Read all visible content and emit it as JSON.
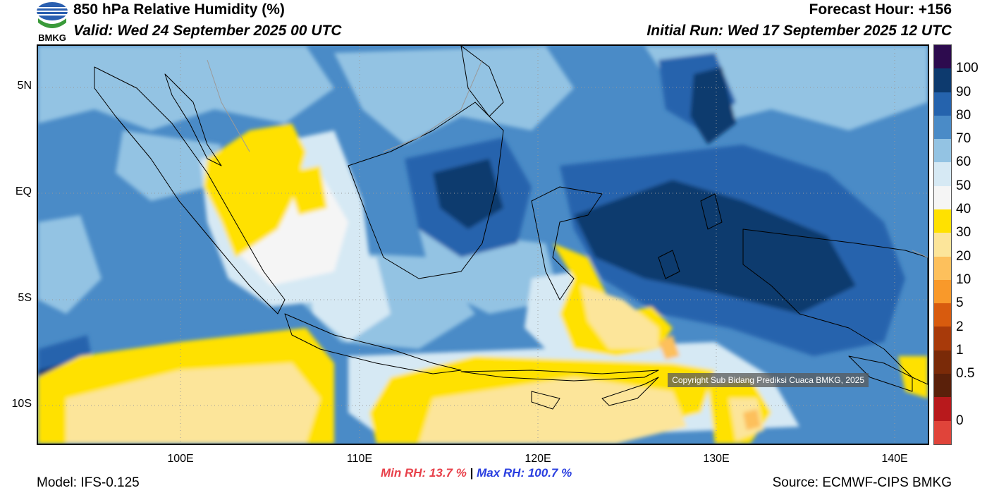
{
  "header": {
    "title": "850 hPa Relative Humidity (%)",
    "valid": "Valid: Wed 24 September 2025 00 UTC",
    "forecast_hour": "Forecast Hour: +156",
    "initial_run": "Initial Run: Wed 17 September 2025 12 UTC"
  },
  "logo": {
    "text": "BMKG",
    "icon": "bmkg-logo-icon"
  },
  "axes": {
    "lat_labels": [
      "5N",
      "EQ",
      "5S",
      "10S"
    ],
    "lon_labels": [
      "100E",
      "110E",
      "120E",
      "130E",
      "140E"
    ]
  },
  "colorbar": {
    "labels": [
      "100",
      "90",
      "80",
      "70",
      "60",
      "50",
      "40",
      "30",
      "20",
      "10",
      "5",
      "2",
      "1",
      "0.5",
      "0"
    ],
    "colors": [
      "#2d0b4e",
      "#0d3a6e",
      "#2563ad",
      "#4a8bc7",
      "#93c3e3",
      "#d6e9f4",
      "#f5f5f5",
      "#ffe100",
      "#fce59a",
      "#fdc05c",
      "#f9992a",
      "#d85b0e",
      "#a83a0a",
      "#7a2a08",
      "#5a200a",
      "#b8191c",
      "#e0443a"
    ]
  },
  "stats": {
    "min_rh": "Min RH:  13.7 %",
    "separator": "|",
    "max_rh": "Max RH: 100.7 %",
    "min_color": "#e8404a",
    "max_color": "#2a3fe0"
  },
  "footer": {
    "model": "Model: IFS-0.125",
    "source": "Source: ECMWF-CIPS BMKG"
  },
  "map": {
    "copyright": "Copyright Sub Bidang Prediksi Cuaca BMKG, 2025"
  }
}
